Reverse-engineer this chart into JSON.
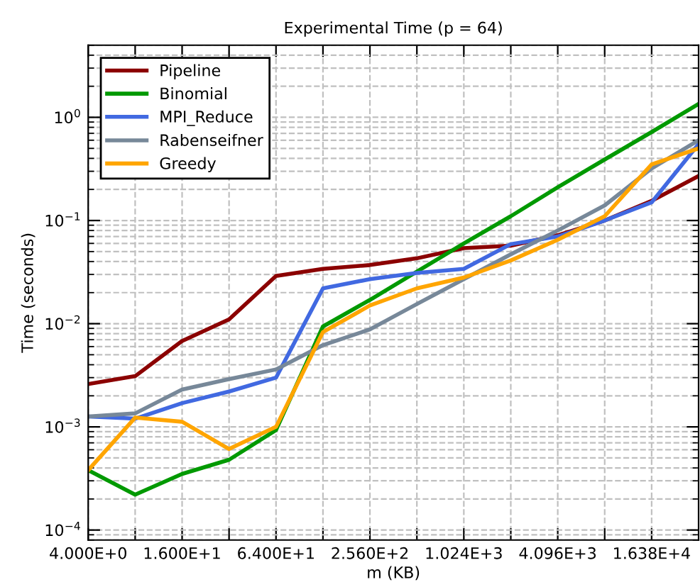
{
  "chart_data": {
    "type": "line",
    "title": "Experimental Time (p = 64)",
    "xlabel": "m (KB)",
    "ylabel": "Time (seconds)",
    "x": [
      4,
      8,
      16,
      32,
      64,
      128,
      256,
      512,
      1024,
      2048,
      4096,
      8192,
      16384,
      32768
    ],
    "series": [
      {
        "name": "Pipeline",
        "color": "#8b0000",
        "values": [
          0.0026,
          0.0031,
          0.0068,
          0.011,
          0.029,
          0.034,
          0.037,
          0.043,
          0.054,
          0.057,
          0.072,
          0.1,
          0.155,
          0.27
        ]
      },
      {
        "name": "Binomial",
        "color": "#009900",
        "values": [
          0.00038,
          0.00022,
          0.00035,
          0.00048,
          0.00093,
          0.0094,
          0.017,
          0.032,
          0.06,
          0.11,
          0.21,
          0.39,
          0.72,
          1.35
        ]
      },
      {
        "name": "MPI_Reduce",
        "color": "#4169e1",
        "values": [
          0.00126,
          0.0012,
          0.0017,
          0.0022,
          0.003,
          0.022,
          0.027,
          0.031,
          0.034,
          0.059,
          0.07,
          0.1,
          0.15,
          0.55
        ]
      },
      {
        "name": "Rabenseifner",
        "color": "#778899",
        "values": [
          0.00126,
          0.00135,
          0.0023,
          0.0029,
          0.0036,
          0.0062,
          0.0088,
          0.0155,
          0.027,
          0.047,
          0.08,
          0.14,
          0.32,
          0.6
        ]
      },
      {
        "name": "Greedy",
        "color": "#ffa500",
        "values": [
          0.00038,
          0.00123,
          0.00112,
          0.00061,
          0.001,
          0.0083,
          0.015,
          0.022,
          0.028,
          0.041,
          0.065,
          0.11,
          0.35,
          0.5
        ]
      }
    ],
    "log": "xy",
    "xlim": [
      4,
      32768
    ],
    "ylim": [
      8e-05,
      5
    ],
    "xticks": [
      {
        "value": 4,
        "label": "4.000E+0"
      },
      {
        "value": 8,
        "label": null
      },
      {
        "value": 16,
        "label": "1.600E+1"
      },
      {
        "value": 32,
        "label": null
      },
      {
        "value": 64,
        "label": "6.400E+1"
      },
      {
        "value": 128,
        "label": null
      },
      {
        "value": 256,
        "label": "2.560E+2"
      },
      {
        "value": 512,
        "label": null
      },
      {
        "value": 1024,
        "label": "1.024E+3"
      },
      {
        "value": 2048,
        "label": null
      },
      {
        "value": 4096,
        "label": "4.096E+3"
      },
      {
        "value": 8192,
        "label": null
      },
      {
        "value": 16384,
        "label": "1.638E+4"
      }
    ],
    "yticks": [
      {
        "value": 0.0001,
        "label": "10$^{−4}$"
      },
      {
        "value": 0.001,
        "label": "10$^{−3}$"
      },
      {
        "value": 0.01,
        "label": "10$^{−2}$"
      },
      {
        "value": 0.1,
        "label": "10$^{−1}$"
      },
      {
        "value": 1,
        "label": "10$^{0}$"
      }
    ],
    "grid": true,
    "legend": "top left",
    "marker": "none",
    "line_style": "solid"
  }
}
